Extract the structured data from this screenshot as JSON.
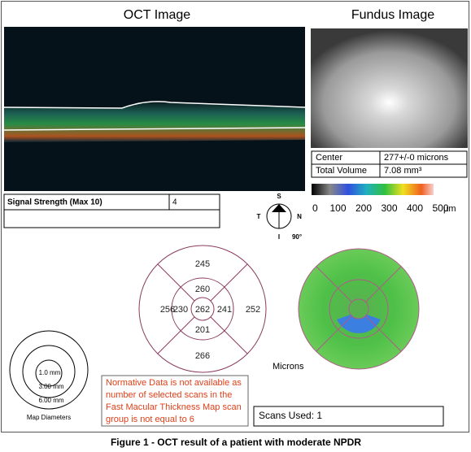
{
  "oct": {
    "title": "OCT Image",
    "signal_label": "Signal Strength (Max 10)",
    "signal_value": "4"
  },
  "fundus": {
    "title": "Fundus Image",
    "rows": [
      [
        "Center",
        "277+/-0 microns"
      ],
      [
        "Total Volume",
        "7.08 mm³"
      ]
    ]
  },
  "scale": {
    "labels": [
      "0",
      "100",
      "200",
      "300",
      "400",
      "500"
    ],
    "unit": "µm"
  },
  "compass": {
    "top": "S",
    "left": "T",
    "right": "N",
    "bottom": "I",
    "angle": "90°"
  },
  "thickness_map": {
    "center": "262",
    "inner": {
      "top": "260",
      "left": "230",
      "right": "241",
      "bottom": "201"
    },
    "outer": {
      "top": "245",
      "left": "256",
      "right": "252",
      "bottom": "266"
    },
    "unit": "Microns"
  },
  "map_diameters": {
    "rings": [
      "1.0 mm",
      "3.00 mm",
      "6.00 mm"
    ],
    "caption": "Map Diameters"
  },
  "note": [
    "Normative Data is not available as",
    "number of selected scans in the",
    "Fast Macular Thickness Map scan",
    "group is not equal to 6"
  ],
  "scans_used": "Scans Used: 1",
  "caption": "Figure 1 - OCT result of a patient with moderate NPDR"
}
